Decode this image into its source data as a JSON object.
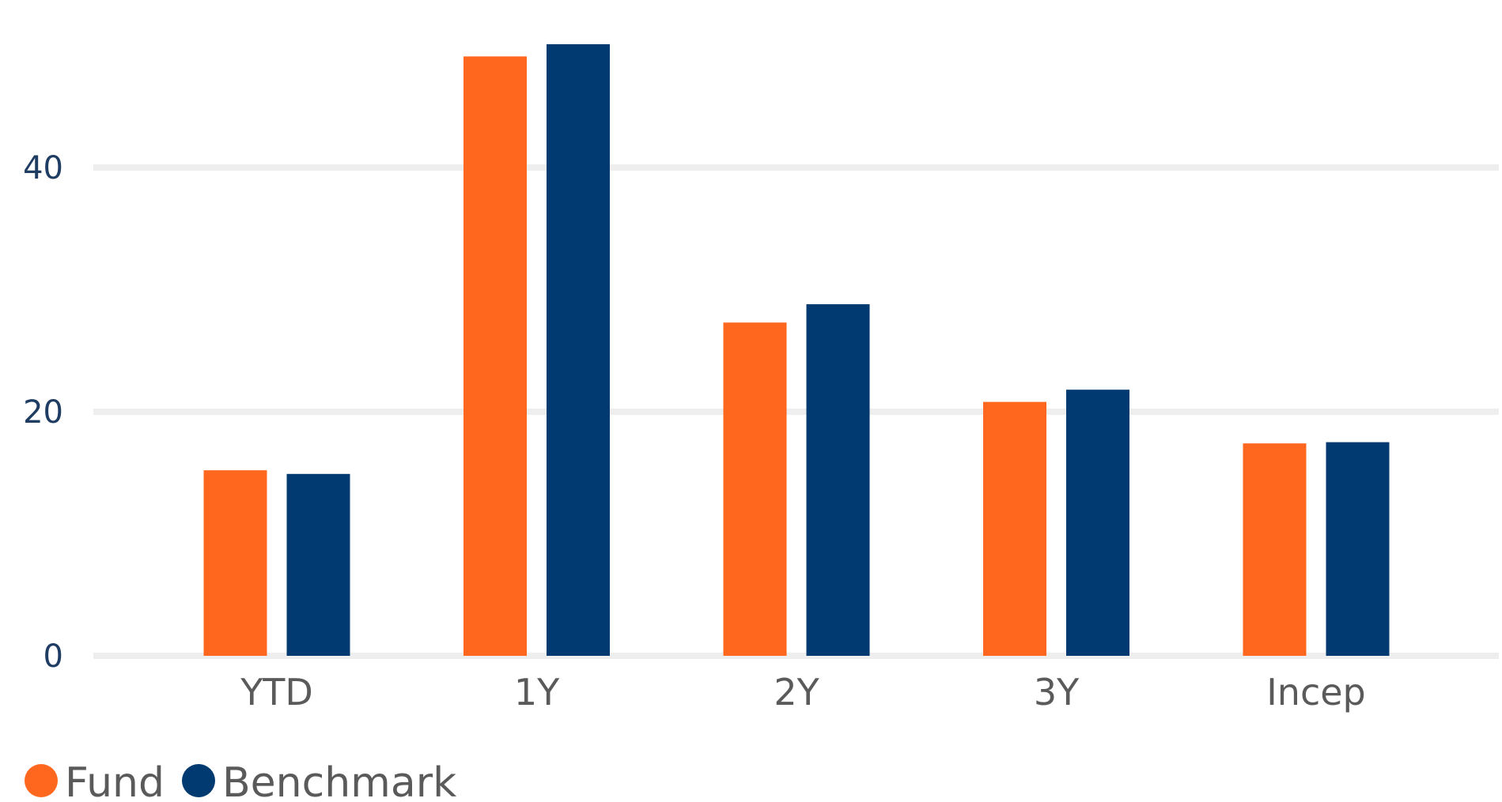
{
  "chart_data": {
    "type": "bar",
    "title": "",
    "xlabel": "",
    "ylabel": "",
    "categories": [
      "YTD",
      "1Y",
      "2Y",
      "3Y",
      "Incep"
    ],
    "series": [
      {
        "name": "Fund",
        "color": "#ff671f",
        "values": [
          15.2,
          49.1,
          27.3,
          20.8,
          17.4
        ]
      },
      {
        "name": "Benchmark",
        "color": "#003a70",
        "values": [
          14.9,
          50.1,
          28.8,
          21.8,
          17.5
        ]
      }
    ],
    "ylim": [
      0,
      50
    ],
    "yticks": [
      "0",
      "20",
      "40"
    ],
    "ytick_values": [
      0,
      20,
      40
    ],
    "grid": true,
    "legend": "bottom-left"
  }
}
